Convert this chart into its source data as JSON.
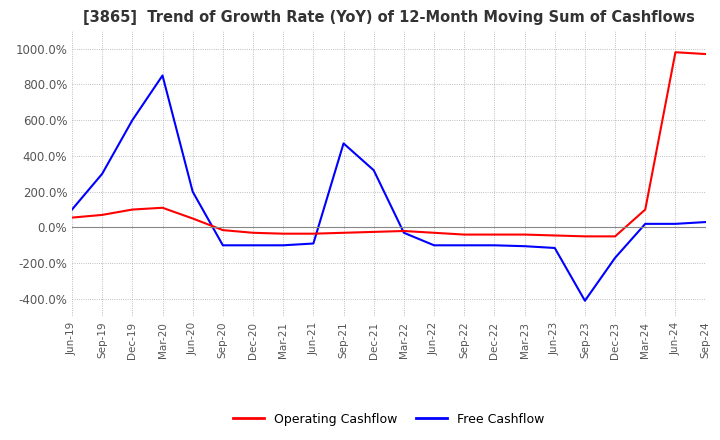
{
  "title": "[3865]  Trend of Growth Rate (YoY) of 12-Month Moving Sum of Cashflows",
  "background_color": "#ffffff",
  "grid_color": "#aaaaaa",
  "operating_color": "#ff0000",
  "free_color": "#0000ff",
  "legend_labels": [
    "Operating Cashflow",
    "Free Cashflow"
  ],
  "ylim": [
    -500,
    1100
  ],
  "yticks": [
    -400,
    -200,
    0,
    200,
    400,
    600,
    800,
    1000
  ],
  "x_labels": [
    "Jun-19",
    "Sep-19",
    "Dec-19",
    "Mar-20",
    "Jun-20",
    "Sep-20",
    "Dec-20",
    "Mar-21",
    "Jun-21",
    "Sep-21",
    "Dec-21",
    "Mar-22",
    "Jun-22",
    "Sep-22",
    "Dec-22",
    "Mar-23",
    "Jun-23",
    "Sep-23",
    "Dec-23",
    "Mar-24",
    "Jun-24",
    "Sep-24"
  ],
  "operating_cashflow": [
    55,
    70,
    100,
    110,
    50,
    -15,
    -30,
    -35,
    -35,
    -30,
    -25,
    -20,
    -30,
    -40,
    -40,
    -40,
    -45,
    -50,
    -50,
    100,
    980,
    970
  ],
  "free_cashflow": [
    100,
    300,
    600,
    850,
    200,
    -100,
    -100,
    -100,
    -90,
    470,
    320,
    -30,
    -100,
    -100,
    -100,
    -105,
    -115,
    -410,
    -170,
    20,
    20,
    30
  ]
}
